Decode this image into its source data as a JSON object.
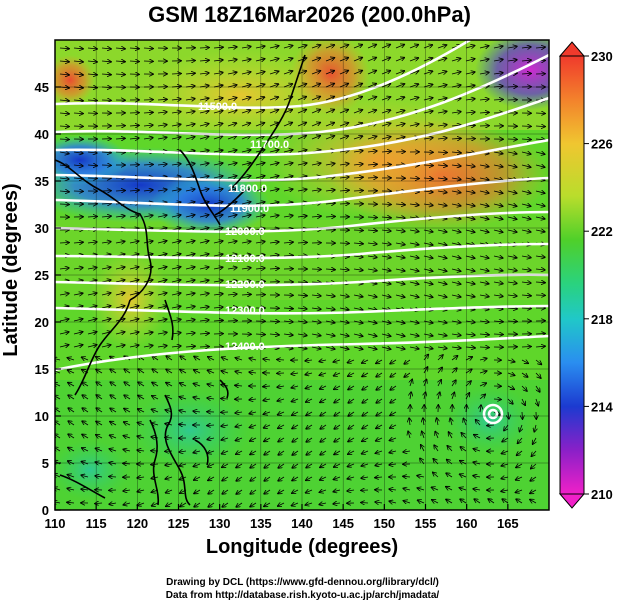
{
  "title": "GSM 18Z16Mar2026 (200.0hPa)",
  "axes": {
    "xlabel": "Longitude (degrees)",
    "ylabel": "Latitude  (degrees)",
    "x_ticks": [
      "110",
      "115",
      "120",
      "125",
      "130",
      "135",
      "140",
      "145",
      "150",
      "155",
      "160",
      "165"
    ],
    "y_ticks": [
      "0",
      "5",
      "10",
      "15",
      "20",
      "25",
      "30",
      "35",
      "40",
      "45"
    ]
  },
  "colorbar": {
    "labels": [
      "230",
      "226",
      "222",
      "218",
      "214",
      "210"
    ],
    "unit_range": [
      210,
      230
    ]
  },
  "contour_labels": [
    "11500.0",
    "11700.0",
    "11800.0",
    "11900.0",
    "12000.0",
    "12100.0",
    "12200.0",
    "12300.0",
    "12400.0"
  ],
  "credits": {
    "line1": "Drawing by DCL (https://www.gfd-dennou.org/library/dcl/)",
    "line2": "Data from http://database.rish.kyoto-u.ac.jp/arch/jmadata/"
  },
  "chart_data": {
    "type": "heatmap",
    "title": "GSM 18Z16Mar2026 (200.0hPa)",
    "xlabel": "Longitude (degrees)",
    "ylabel": "Latitude  (degrees)",
    "xlim": [
      110,
      170
    ],
    "ylim": [
      0,
      50
    ],
    "colorbar_range": [
      210,
      230
    ],
    "contour_levels": [
      11500,
      11700,
      11800,
      11900,
      12000,
      12100,
      12200,
      12300,
      12400
    ]
  }
}
